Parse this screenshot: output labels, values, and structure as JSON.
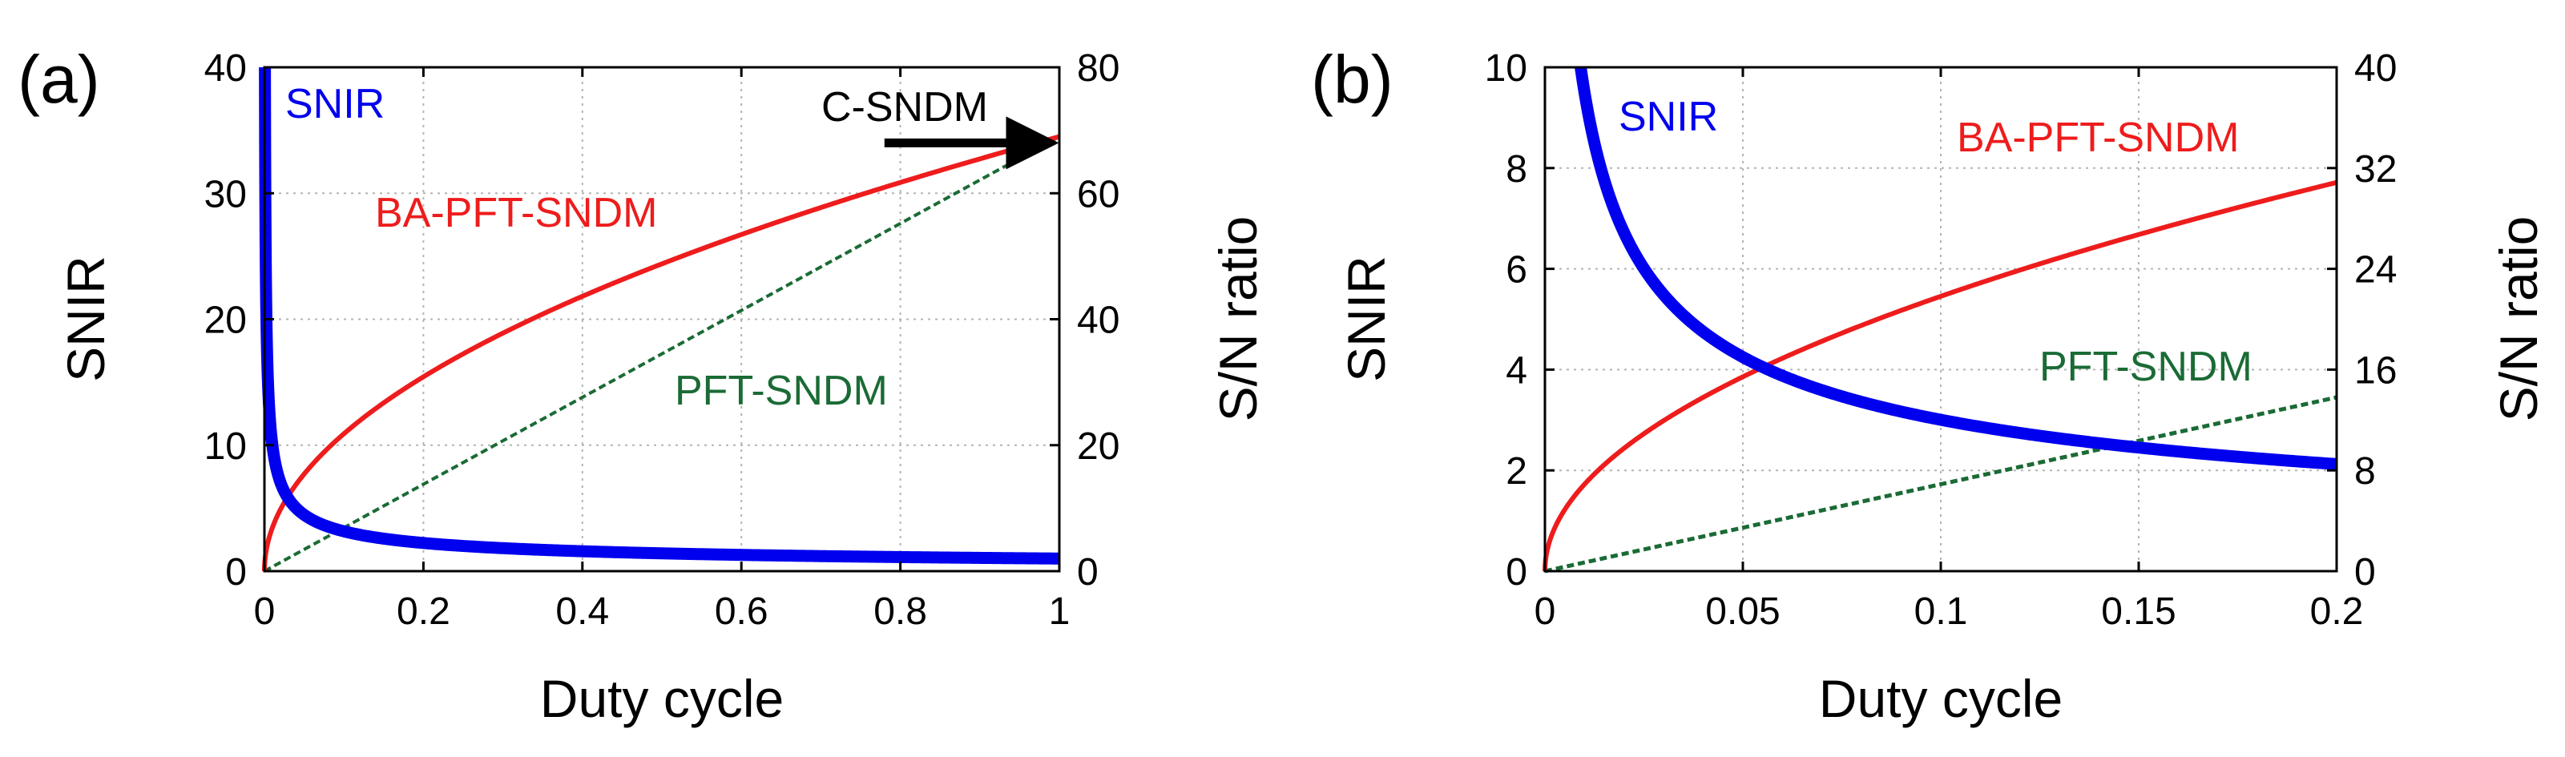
{
  "chart_data": [
    {
      "panel": "(a)",
      "type": "line",
      "title": "",
      "xlabel": "Duty cycle",
      "ylabel": "SNIR",
      "y2label": "S/N ratio",
      "xlim": [
        0,
        1
      ],
      "ylim": [
        0,
        40
      ],
      "y2lim": [
        0,
        80
      ],
      "xticks": [
        "0",
        "0.2",
        "0.4",
        "0.6",
        "0.8",
        "1"
      ],
      "xtick_values": [
        0,
        0.2,
        0.4,
        0.6,
        0.8,
        1
      ],
      "yticks": [
        "0",
        "10",
        "20",
        "30",
        "40"
      ],
      "ytick_values": [
        0,
        10,
        20,
        30,
        40
      ],
      "y2ticks": [
        "0",
        "20",
        "40",
        "60",
        "80"
      ],
      "y2tick_values": [
        0,
        20,
        40,
        60,
        80
      ],
      "grid": true,
      "series": [
        {
          "name": "SNIR",
          "axis": "left",
          "color": "#0000ee",
          "style": "solid",
          "model": "power",
          "coefficient": 1.0,
          "exponent": -0.5
        },
        {
          "name": "BA-PFT-SNDM",
          "axis": "right",
          "color": "#ee1c1c",
          "style": "solid",
          "model": "power",
          "coefficient": 69,
          "exponent": 0.5
        },
        {
          "name": "PFT-SNDM",
          "axis": "right",
          "color": "#1a6b35",
          "style": "dashed",
          "model": "power",
          "coefficient": 69,
          "exponent": 1.0
        }
      ],
      "annotations": [
        {
          "text": "SNIR",
          "color": "#0000ee"
        },
        {
          "text": "BA-PFT-SNDM",
          "color": "#ee1c1c"
        },
        {
          "text": "PFT-SNDM",
          "color": "#1a6b35"
        },
        {
          "text": "C-SNDM",
          "color": "#000000",
          "arrow": {
            "from": [
              0.78,
              68
            ],
            "to": [
              1.0,
              68
            ]
          }
        }
      ]
    },
    {
      "panel": "(b)",
      "type": "line",
      "title": "",
      "xlabel": "Duty cycle",
      "ylabel": "SNIR",
      "y2label": "S/N ratio",
      "xlim": [
        0,
        0.2
      ],
      "ylim": [
        0,
        10
      ],
      "y2lim": [
        0,
        40
      ],
      "xticks": [
        "0",
        "0.05",
        "0.1",
        "0.15",
        "0.2"
      ],
      "xtick_values": [
        0,
        0.05,
        0.1,
        0.15,
        0.2
      ],
      "yticks": [
        "0",
        "2",
        "4",
        "6",
        "8",
        "10"
      ],
      "ytick_values": [
        0,
        2,
        4,
        6,
        8,
        10
      ],
      "y2ticks": [
        "0",
        "8",
        "16",
        "24",
        "32",
        "40"
      ],
      "y2tick_values": [
        0,
        8,
        16,
        24,
        32,
        40
      ],
      "grid": true,
      "series": [
        {
          "name": "SNIR",
          "axis": "left",
          "color": "#0000ee",
          "style": "solid",
          "model": "power",
          "coefficient": 0.95,
          "exponent": -0.5
        },
        {
          "name": "BA-PFT-SNDM",
          "axis": "right",
          "color": "#ee1c1c",
          "style": "solid",
          "model": "power",
          "coefficient": 69,
          "exponent": 0.5
        },
        {
          "name": "PFT-SNDM",
          "axis": "right",
          "color": "#1a6b35",
          "style": "dashed",
          "model": "power",
          "coefficient": 69,
          "exponent": 1.0
        }
      ],
      "annotations": [
        {
          "text": "SNIR",
          "color": "#0000ee"
        },
        {
          "text": "BA-PFT-SNDM",
          "color": "#ee1c1c"
        },
        {
          "text": "PFT-SNDM",
          "color": "#1a6b35"
        }
      ]
    }
  ]
}
